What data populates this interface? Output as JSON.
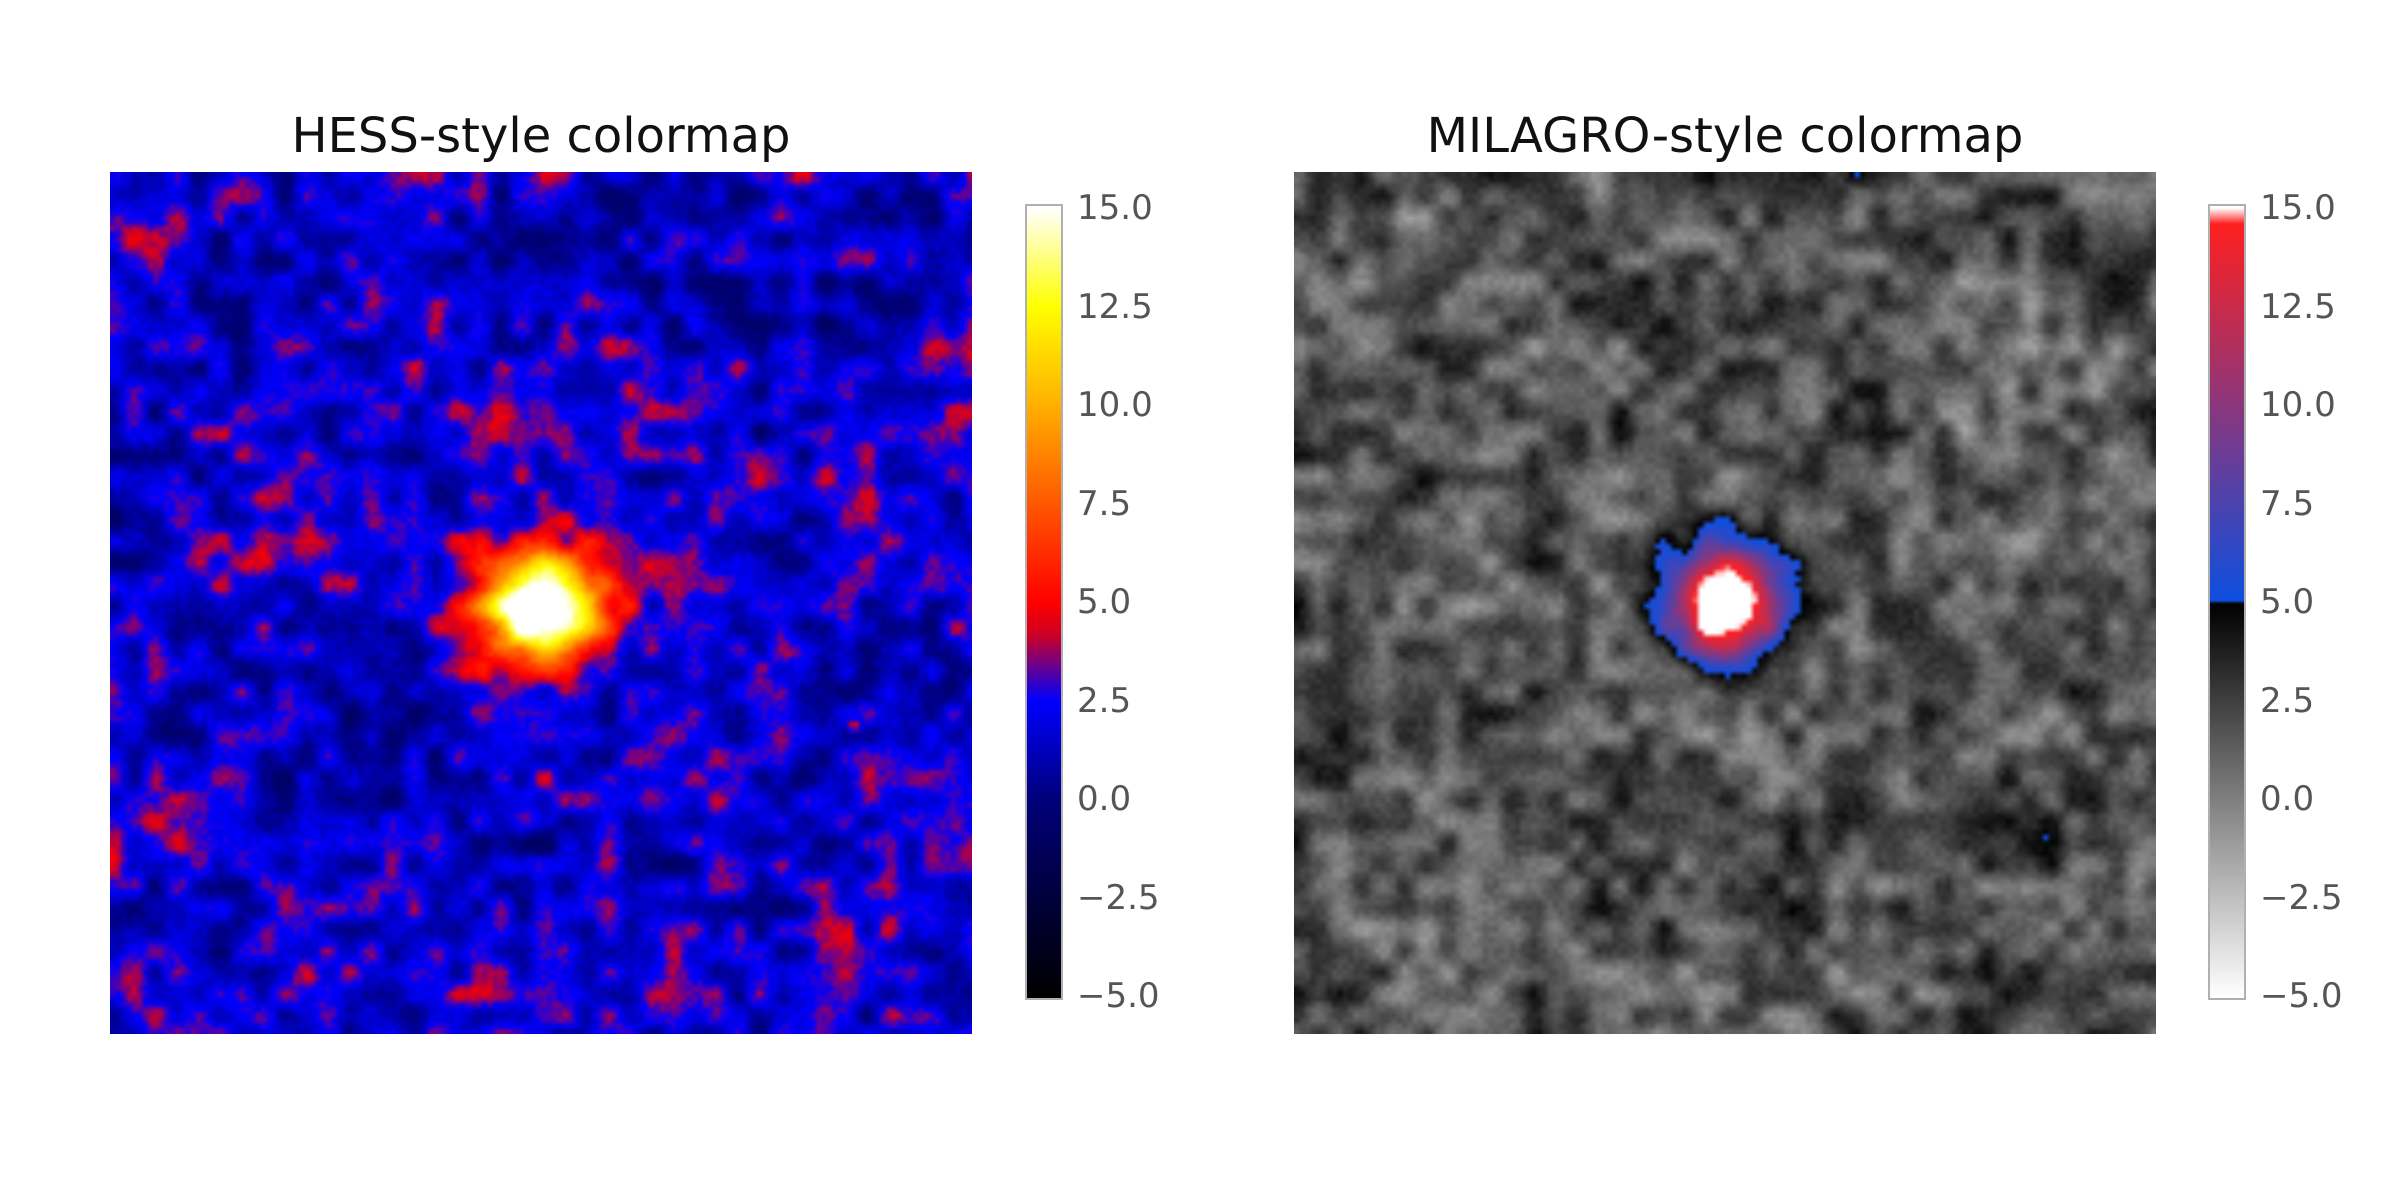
{
  "chart_data": [
    {
      "type": "heatmap",
      "title": "HESS-style colormap",
      "colormap": "hess",
      "colorbar": {
        "vmin": -5.0,
        "vmax": 15.0,
        "ticks": [
          -5.0,
          -2.5,
          0.0,
          2.5,
          5.0,
          7.5,
          10.0,
          12.5,
          15.0
        ],
        "tick_labels": [
          "−5.0",
          "−2.5",
          "0.0",
          "2.5",
          "5.0",
          "7.5",
          "10.0",
          "12.5",
          "15.0"
        ],
        "stops": [
          {
            "v": -5.0,
            "color": "#000000"
          },
          {
            "v": 0.0,
            "color": "#00007a"
          },
          {
            "v": 2.5,
            "color": "#0000ff"
          },
          {
            "v": 4.2,
            "color": "#d00022"
          },
          {
            "v": 5.0,
            "color": "#ff0000"
          },
          {
            "v": 10.0,
            "color": "#ffb000"
          },
          {
            "v": 12.5,
            "color": "#ffff00"
          },
          {
            "v": 15.0,
            "color": "#ffffff"
          }
        ]
      },
      "field": {
        "background_mean": 1.8,
        "background_spread": 1.3,
        "source": {
          "x": 0.5,
          "y": 0.5,
          "peak": 18.0
        },
        "hotspot": {
          "x": 0.86,
          "y": 0.64,
          "value": 4.5
        }
      }
    },
    {
      "type": "heatmap",
      "title": "MILAGRO-style colormap",
      "colormap": "milagro",
      "colorbar": {
        "vmin": -5.0,
        "vmax": 15.0,
        "ticks": [
          -5.0,
          -2.5,
          0.0,
          2.5,
          5.0,
          7.5,
          10.0,
          12.5,
          15.0
        ],
        "tick_labels": [
          "−5.0",
          "−2.5",
          "0.0",
          "2.5",
          "5.0",
          "7.5",
          "10.0",
          "12.5",
          "15.0"
        ],
        "stops": [
          {
            "v": -5.0,
            "color": "#ffffff"
          },
          {
            "v": 4.99,
            "color": "#000000"
          },
          {
            "v": 5.0,
            "color": "#0d4fe0"
          },
          {
            "v": 14.6,
            "color": "#ff2020"
          },
          {
            "v": 15.0,
            "color": "#ffffff"
          }
        ]
      },
      "field": {
        "background_mean": 1.8,
        "background_spread": 1.3,
        "source": {
          "x": 0.5,
          "y": 0.5,
          "peak": 18.0
        }
      }
    }
  ]
}
